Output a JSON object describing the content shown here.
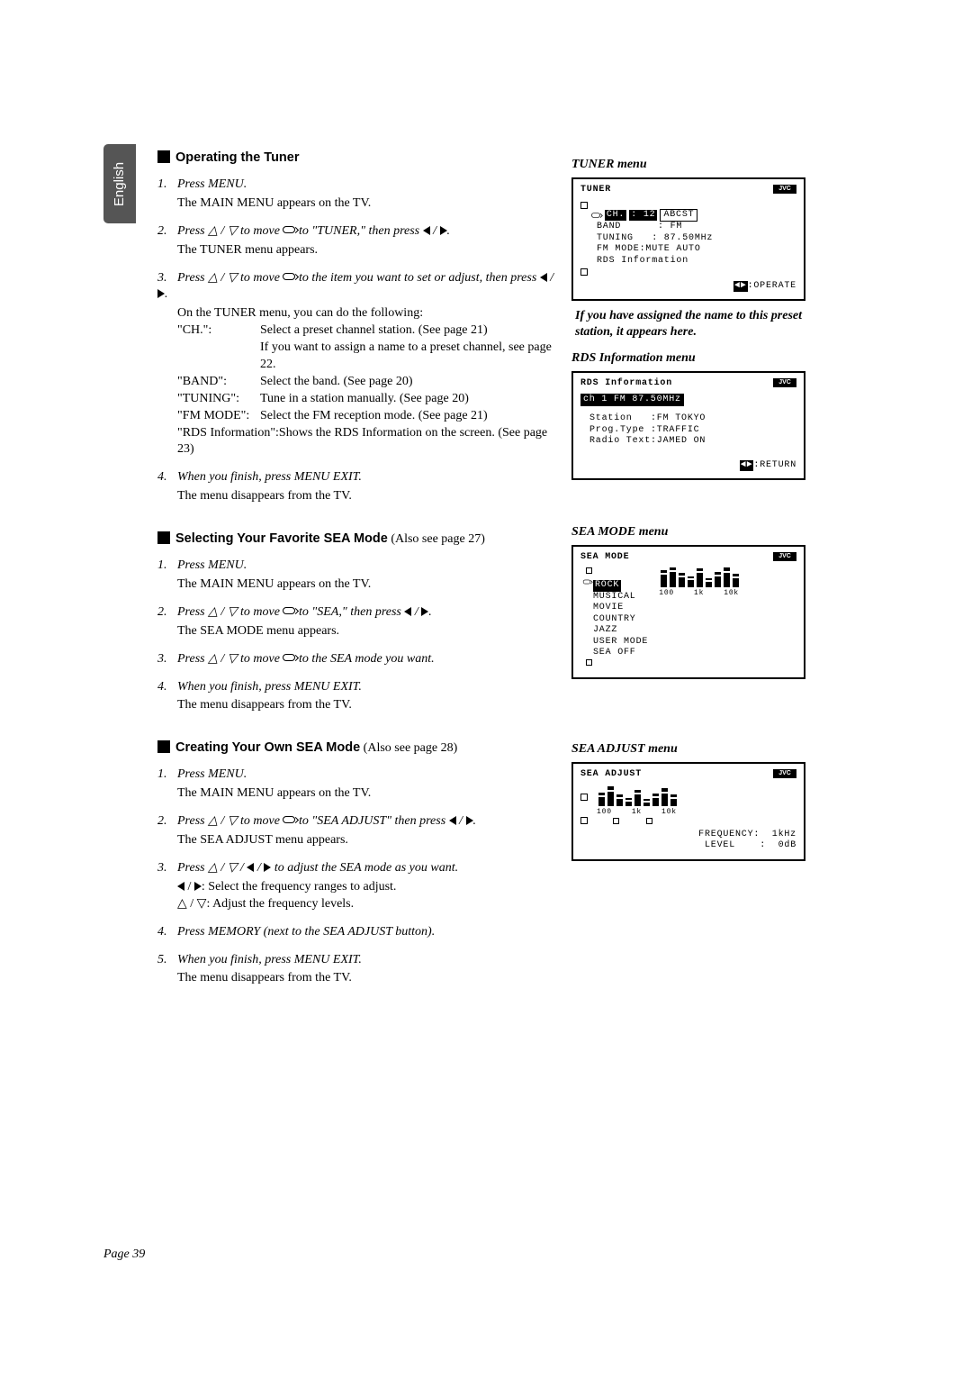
{
  "language_tab": "English",
  "page_number": "Page 39",
  "sections": {
    "tuner": {
      "title": "Operating the Tuner",
      "steps": {
        "s1_head": "Press MENU.",
        "s1_body": "The MAIN MENU appears on the TV.",
        "s2_head_a": "Press ",
        "s2_head_b": " to move ",
        "s2_head_c": " to \"TUNER,\" then press ",
        "s2_head_d": ".",
        "s2_body": "The TUNER menu appears.",
        "s3_head_a": "Press ",
        "s3_head_b": " to move ",
        "s3_head_c": " to the item you want to set or adjust, then press ",
        "s3_head_d": ".",
        "s3_body": "On the TUNER menu, you can do the following:",
        "tbl": {
          "ch_k": "\"CH.\":",
          "ch_v1": "Select a preset channel station. (See page 21)",
          "ch_v2": "If you want to assign a name to a preset channel, see page 22.",
          "band_k": "\"BAND\":",
          "band_v": "Select the band. (See page 20)",
          "tuning_k": "\"TUNING\":",
          "tuning_v": "Tune in a station manually. (See page 20)",
          "fmmode_k": "\"FM MODE\":",
          "fmmode_v": "Select the FM reception mode. (See page 21)",
          "rds": "\"RDS Information\":Shows the RDS Information on the screen. (See page 23)"
        },
        "s4_head": "When you finish, press MENU EXIT.",
        "s4_body": "The menu disappears from the TV."
      }
    },
    "sea_sel": {
      "title": "Selecting Your Favorite SEA Mode",
      "also": " (Also see page 27)",
      "s1_head": "Press MENU.",
      "s1_body": "The MAIN MENU appears on the TV.",
      "s2_head_a": "Press ",
      "s2_head_b": " to move ",
      "s2_head_c": " to \"SEA,\" then press ",
      "s2_head_d": ".",
      "s2_body": "The SEA MODE menu appears.",
      "s3_head_a": "Press ",
      "s3_head_b": " to move ",
      "s3_head_c": " to the SEA mode you want.",
      "s4_head": "When you finish, press MENU EXIT.",
      "s4_body": "The menu disappears from the TV."
    },
    "sea_create": {
      "title": "Creating Your Own SEA Mode",
      "also": " (Also see page 28)",
      "s1_head": "Press MENU.",
      "s1_body": "The MAIN MENU appears on the TV.",
      "s2_head_a": "Press ",
      "s2_head_b": " to move ",
      "s2_head_c": " to \"SEA ADJUST\" then press ",
      "s2_head_d": ".",
      "s2_body": "The SEA ADJUST menu appears.",
      "s3_head_a": "Press ",
      "s3_head_b": " to adjust the SEA mode as you want.",
      "s3_l1_a": ": Select the frequency ranges to adjust.",
      "s3_l2_a": ": Adjust the frequency levels.",
      "s4_head": "Press MEMORY (next to the SEA ADJUST button).",
      "s5_head": "When you finish, press MENU EXIT.",
      "s5_body": "The menu disappears from the TV."
    }
  },
  "side": {
    "tuner_menu": {
      "label": "TUNER menu",
      "title": "TUNER",
      "ch_line_a": "CH.",
      "ch_line_b": ": 12",
      "ch_box": "ABCST",
      "band": "BAND      : FM",
      "tuning": "TUNING   : 87.50MHz",
      "fmmode": "FM MODE:MUTE AUTO",
      "rds": "RDS Information",
      "operate": ":OPERATE"
    },
    "tuner_note": "If you have assigned the name to this preset station, it appears here.",
    "rds_menu": {
      "label": "RDS Information menu",
      "title": "RDS Information",
      "bar": "ch  1  FM 87.50MHz",
      "l1": "Station   :FM TOKYO",
      "l2": "Prog.Type :TRAFFIC",
      "l3": "Radio Text:JAMED ON",
      "return": ":RETURN"
    },
    "sea_mode": {
      "label": "SEA MODE menu",
      "title": "SEA MODE",
      "items": [
        "ROCK",
        "MUSICAL",
        "MOVIE",
        "COUNTRY",
        "JAZZ",
        "USER MODE",
        "SEA OFF"
      ],
      "freq": [
        "100",
        "1k",
        "10k"
      ],
      "bars": [
        14,
        20,
        11,
        8,
        16,
        6,
        12,
        18,
        10
      ],
      "caps": [
        3,
        4,
        3,
        2,
        3,
        2,
        3,
        4,
        3
      ]
    },
    "sea_adjust": {
      "label": "SEA ADJUST menu",
      "title": "SEA ADJUST",
      "freq_labels": [
        "100",
        "1k",
        "10k"
      ],
      "bars": [
        10,
        16,
        8,
        5,
        13,
        4,
        9,
        14,
        8
      ],
      "caps": [
        3,
        4,
        3,
        2,
        3,
        2,
        3,
        4,
        3
      ],
      "freq_line": "FREQUENCY:  1kHz",
      "level_line": "LEVEL    :  0dB"
    }
  }
}
